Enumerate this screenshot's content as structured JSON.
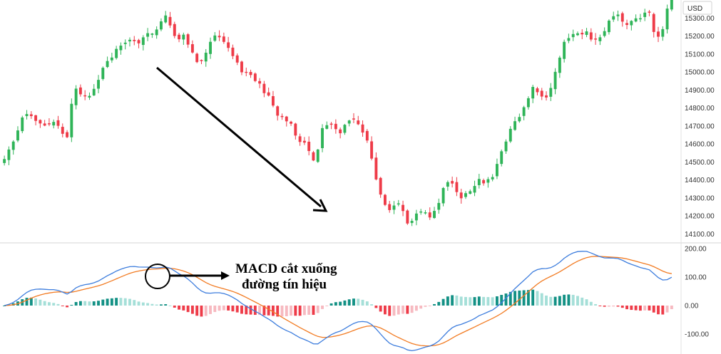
{
  "currency_label": "USD",
  "annotation": {
    "line1": "MACD cắt xuống",
    "line2": "đường tín hiệu"
  },
  "colors": {
    "up": "#2fb458",
    "down": "#ee3b48",
    "macd": "#3d7ddd",
    "signal": "#f27b22",
    "hist_pos_strong": "#139185",
    "hist_pos_weak": "#a5dfd8",
    "hist_neg_strong": "#ee3b48",
    "hist_neg_weak": "#f7b9c0"
  },
  "chart_data": [
    {
      "type": "candlestick",
      "ylim": [
        14050,
        15400
      ],
      "y_ticks": [
        "15300.00",
        "15200.00",
        "15100.00",
        "15000.00",
        "14900.00",
        "14800.00",
        "14700.00",
        "14600.00",
        "14500.00",
        "14400.00",
        "14300.00",
        "14200.00",
        "14100.00"
      ],
      "close_path": [
        14530,
        14600,
        14720,
        14775,
        14730,
        14705,
        14720,
        14710,
        14610,
        14920,
        14880,
        14860,
        14940,
        15060,
        15090,
        15160,
        15180,
        15160,
        15200,
        15210,
        15270,
        15310,
        15180,
        15210,
        15110,
        15050,
        15100,
        15200,
        15170,
        15130,
        15050,
        14985,
        14970,
        14920,
        14870,
        14760,
        14740,
        14700,
        14600,
        14590,
        14480,
        14700,
        14730,
        14650,
        14720,
        14740,
        14690,
        14600,
        14380,
        14250,
        14240,
        14260,
        14150,
        14200,
        14230,
        14190,
        14280,
        14390,
        14360,
        14300,
        14330,
        14400,
        14380,
        14420,
        14560,
        14660,
        14730,
        14800,
        14910,
        14880,
        14870,
        15000,
        15150,
        15210,
        15200,
        15220,
        15170,
        15200,
        15300,
        15320,
        15260,
        15290,
        15310,
        15340,
        15170,
        15260,
        15460
      ],
      "trend_arrow": true
    },
    {
      "type": "macd",
      "ylim": [
        -170,
        215
      ],
      "y_ticks": [
        "200.00",
        "100.00",
        "0.00",
        "-100.00"
      ]
    }
  ]
}
